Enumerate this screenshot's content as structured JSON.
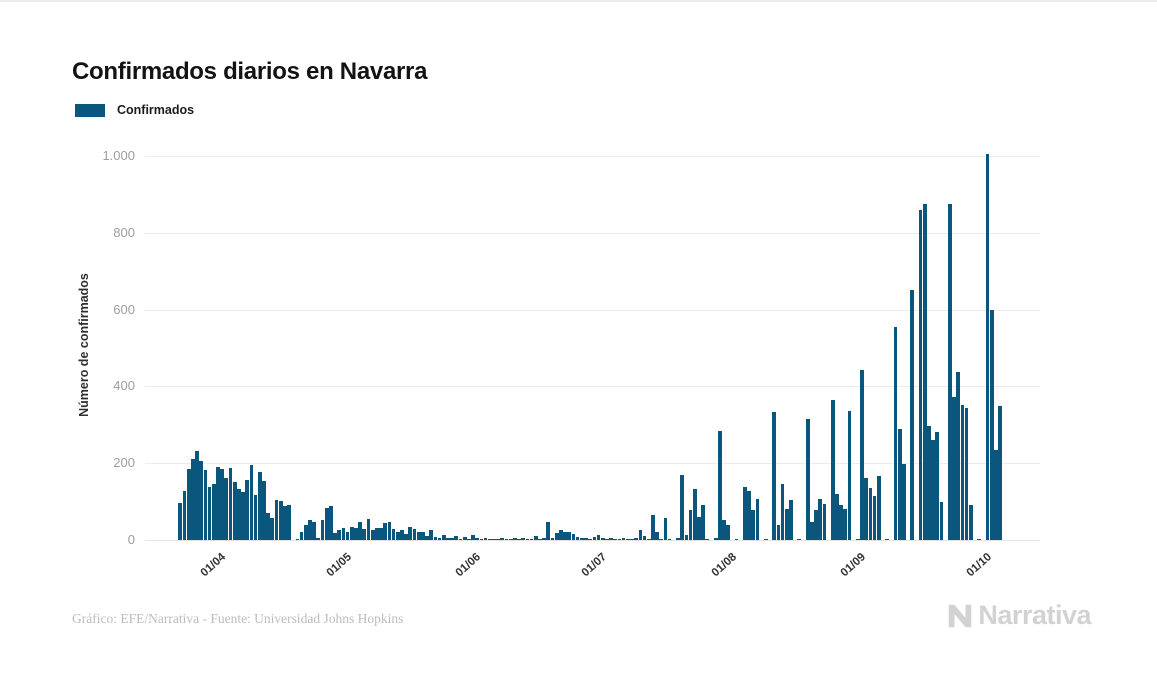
{
  "page": {
    "title": "Confirmados diarios en Navarra"
  },
  "legend": {
    "label": "Confirmados",
    "color": "#0a567d"
  },
  "footer": {
    "credit": "Gráfico: EFE/Narrativa - Fuente: Universidad Johns Hopkins",
    "brand": "Narrativa"
  },
  "chart_data": {
    "type": "bar",
    "title": "Confirmados diarios en Navarra",
    "xlabel": "",
    "ylabel": "Número de confirmados",
    "legend_entries": [
      "Confirmados"
    ],
    "bar_color": "#0a567d",
    "grid": true,
    "ylim": [
      0,
      1042
    ],
    "yticks": {
      "values": [
        0,
        200,
        400,
        600,
        800,
        1000
      ],
      "labels": [
        "0",
        "200",
        "400",
        "600",
        "800",
        "1.000"
      ]
    },
    "xticks": [
      {
        "index": 10,
        "label": "01/04"
      },
      {
        "index": 40,
        "label": "01/05"
      },
      {
        "index": 71,
        "label": "01/06"
      },
      {
        "index": 101,
        "label": "01/07"
      },
      {
        "index": 132,
        "label": "01/08"
      },
      {
        "index": 163,
        "label": "01/09"
      },
      {
        "index": 193,
        "label": "01/10"
      }
    ],
    "values": [
      96,
      127,
      184,
      210,
      232,
      207,
      182,
      137,
      147,
      191,
      186,
      162,
      187,
      152,
      133,
      124,
      155,
      195,
      118,
      178,
      153,
      70,
      57,
      105,
      101,
      88,
      92,
      0,
      3,
      22,
      39,
      53,
      48,
      4,
      51,
      83,
      88,
      18,
      26,
      31,
      22,
      35,
      30,
      46,
      28,
      55,
      25,
      30,
      32,
      45,
      48,
      28,
      22,
      25,
      15,
      35,
      28,
      20,
      22,
      10,
      25,
      8,
      5,
      12,
      6,
      4,
      10,
      3,
      8,
      2,
      14,
      4,
      2,
      6,
      1,
      3,
      2,
      5,
      1,
      2,
      4,
      2,
      6,
      1,
      3,
      10,
      2,
      4,
      48,
      5,
      18,
      25,
      22,
      20,
      15,
      8,
      4,
      6,
      3,
      8,
      12,
      5,
      2,
      4,
      1,
      2,
      6,
      2,
      3,
      6,
      26,
      10,
      2,
      64,
      22,
      2,
      57,
      3,
      0,
      5,
      170,
      12,
      77,
      133,
      60,
      90,
      2,
      0,
      4,
      285,
      53,
      40,
      0,
      2,
      0,
      139,
      128,
      77,
      108,
      0,
      3,
      0,
      333,
      38,
      146,
      82,
      104,
      0,
      2,
      0,
      314,
      47,
      77,
      108,
      93,
      0,
      365,
      121,
      91,
      82,
      337,
      0,
      2,
      443,
      161,
      135,
      115,
      166,
      0,
      2,
      0,
      555,
      290,
      197,
      0,
      650,
      0,
      860,
      875,
      297,
      260,
      282,
      100,
      0,
      875,
      372,
      437,
      351,
      345,
      90,
      0,
      2,
      0,
      1005,
      600,
      235,
      350
    ]
  }
}
